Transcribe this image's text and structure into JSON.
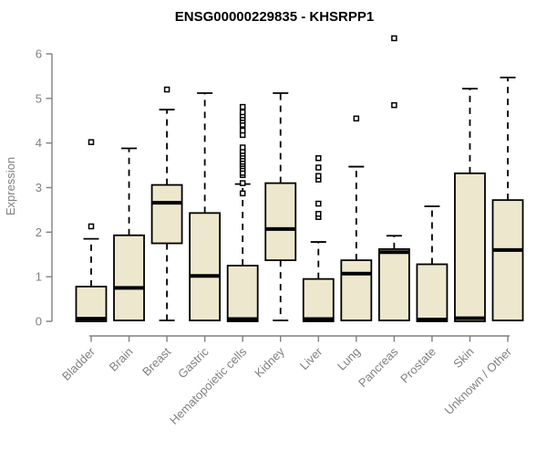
{
  "figure": {
    "title": "ENSG00000229835 - KHSRPP1"
  },
  "colors": {
    "background": "#ffffff",
    "box_fill": "#EDE8CD",
    "box_stroke": "#000000",
    "median": "#000000",
    "whisker": "#000000",
    "outlier_stroke": "#000000",
    "outlier_fill": "#ffffff",
    "axis": "#808080",
    "tick_label": "#808080",
    "title": "#000000"
  },
  "chart_data": {
    "type": "boxplot",
    "title": "ENSG00000229835 - KHSRPP1",
    "xlabel": "",
    "ylabel": "Expression",
    "ylim": [
      0,
      6
    ],
    "yticks": [
      0,
      1,
      2,
      3,
      4,
      5,
      6
    ],
    "grid": false,
    "legend": "none",
    "categories": [
      "Bladder",
      "Brain",
      "Breast",
      "Gastric",
      "Hematopoietic cells",
      "Kidney",
      "Liver",
      "Lung",
      "Pancreas",
      "Prostate",
      "Skin",
      "Unknown / Other"
    ],
    "series": [
      {
        "name": "Bladder",
        "q1": 0.0,
        "median": 0.06,
        "q3": 0.78,
        "whisker_low": 0.0,
        "whisker_high": 1.85,
        "outliers": [
          2.13,
          4.02
        ]
      },
      {
        "name": "Brain",
        "q1": 0.02,
        "median": 0.75,
        "q3": 1.93,
        "whisker_low": 0.0,
        "whisker_high": 3.88,
        "outliers": []
      },
      {
        "name": "Breast",
        "q1": 1.75,
        "median": 2.66,
        "q3": 3.06,
        "whisker_low": 0.02,
        "whisker_high": 4.75,
        "outliers": [
          5.2
        ]
      },
      {
        "name": "Gastric",
        "q1": 0.02,
        "median": 1.02,
        "q3": 2.43,
        "whisker_low": 0.0,
        "whisker_high": 5.12,
        "outliers": []
      },
      {
        "name": "Hematopoietic cells",
        "q1": 0.0,
        "median": 0.05,
        "q3": 1.25,
        "whisker_low": 0.0,
        "whisker_high": 3.08,
        "outliers": [
          2.87,
          3.1,
          3.28,
          3.33,
          3.42,
          3.48,
          3.53,
          3.58,
          3.64,
          3.7,
          3.76,
          3.82,
          3.9,
          4.18,
          4.28,
          4.41,
          4.5,
          4.56,
          4.62,
          4.69,
          4.81
        ]
      },
      {
        "name": "Kidney",
        "q1": 1.37,
        "median": 2.07,
        "q3": 3.1,
        "whisker_low": 0.02,
        "whisker_high": 5.12,
        "outliers": []
      },
      {
        "name": "Liver",
        "q1": 0.0,
        "median": 0.05,
        "q3": 0.95,
        "whisker_low": 0.0,
        "whisker_high": 1.78,
        "outliers": [
          2.34,
          2.41,
          2.64,
          3.18,
          3.26,
          3.45,
          3.66
        ]
      },
      {
        "name": "Lung",
        "q1": 0.02,
        "median": 1.07,
        "q3": 1.37,
        "whisker_low": 0.0,
        "whisker_high": 3.47,
        "outliers": [
          4.55
        ]
      },
      {
        "name": "Pancreas",
        "q1": 0.02,
        "median": 1.55,
        "q3": 1.62,
        "whisker_low": 0.0,
        "whisker_high": 1.92,
        "outliers": [
          4.85,
          6.35
        ]
      },
      {
        "name": "Prostate",
        "q1": 0.0,
        "median": 0.04,
        "q3": 1.28,
        "whisker_low": 0.0,
        "whisker_high": 2.58,
        "outliers": []
      },
      {
        "name": "Skin",
        "q1": 0.0,
        "median": 0.07,
        "q3": 3.32,
        "whisker_low": 0.0,
        "whisker_high": 5.22,
        "outliers": []
      },
      {
        "name": "Unknown / Other",
        "q1": 0.02,
        "median": 1.6,
        "q3": 2.72,
        "whisker_low": 0.0,
        "whisker_high": 5.47,
        "outliers": []
      }
    ]
  }
}
